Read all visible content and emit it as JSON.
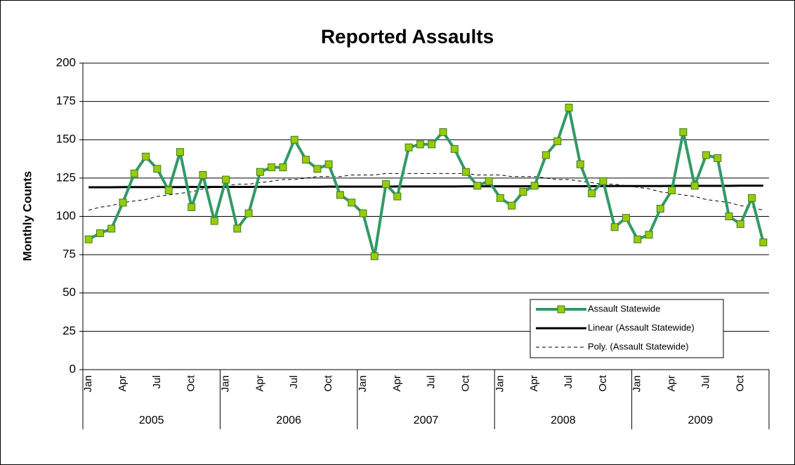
{
  "chart_data": {
    "type": "line",
    "title": "Reported Assaults",
    "y_label": "Monthly Counts",
    "categories": [
      "Jan",
      null,
      null,
      "Apr",
      null,
      null,
      "Jul",
      null,
      null,
      "Oct",
      null,
      null,
      "Jan",
      null,
      null,
      "Apr",
      null,
      null,
      "Jul",
      null,
      null,
      "Oct",
      null,
      null,
      "Jan",
      null,
      null,
      "Apr",
      null,
      null,
      "Jul",
      null,
      null,
      "Oct",
      null,
      null,
      "Jan",
      null,
      null,
      "Apr",
      null,
      null,
      "Jul",
      null,
      null,
      "Oct",
      null,
      null,
      "Jan",
      null,
      null,
      "Apr",
      null,
      null,
      "Jul",
      null,
      null,
      "Oct",
      null,
      null
    ],
    "groups": [
      "2005",
      "2006",
      "2007",
      "2008",
      "2009"
    ],
    "series": [
      {
        "name": "Assault Statewide",
        "color": "#339966",
        "marker_color": "#99cc00",
        "marker": "square",
        "values": [
          85,
          89,
          92,
          109,
          128,
          139,
          131,
          117,
          142,
          106,
          127,
          97,
          124,
          92,
          102,
          129,
          132,
          132,
          150,
          137,
          131,
          134,
          114,
          109,
          102,
          74,
          121,
          113,
          145,
          147,
          147,
          155,
          144,
          129,
          120,
          123,
          112,
          107,
          116,
          120,
          140,
          149,
          171,
          134,
          115,
          123,
          93,
          99,
          85,
          88,
          105,
          117,
          155,
          120,
          140,
          138,
          100,
          95,
          112,
          83
        ]
      },
      {
        "name": "Linear (Assault Statewide)",
        "color": "#000000",
        "dashed": false,
        "values": [
          119.0,
          119.0,
          119.0,
          119.1,
          119.1,
          119.1,
          119.1,
          119.1,
          119.1,
          119.2,
          119.2,
          119.2,
          119.2,
          119.2,
          119.2,
          119.3,
          119.3,
          119.3,
          119.3,
          119.3,
          119.3,
          119.4,
          119.4,
          119.4,
          119.4,
          119.4,
          119.4,
          119.5,
          119.5,
          119.5,
          119.5,
          119.5,
          119.5,
          119.6,
          119.6,
          119.6,
          119.6,
          119.6,
          119.6,
          119.7,
          119.7,
          119.7,
          119.7,
          119.7,
          119.7,
          119.8,
          119.8,
          119.8,
          119.8,
          119.8,
          119.8,
          119.9,
          119.9,
          119.9,
          119.9,
          119.9,
          119.9,
          120.0,
          120.0,
          120.0
        ]
      },
      {
        "name": "Poly. (Assault Statewide)",
        "color": "#000000",
        "dashed": true,
        "values": [
          104,
          106,
          107,
          109,
          110,
          111,
          113,
          114,
          115,
          116,
          118,
          119,
          120,
          121,
          121,
          122,
          123,
          124,
          124,
          125,
          126,
          126,
          126,
          127,
          127,
          127,
          128,
          128,
          128,
          128,
          128,
          128,
          128,
          128,
          127,
          127,
          127,
          126,
          126,
          126,
          125,
          124,
          124,
          123,
          122,
          121,
          121,
          120,
          119,
          118,
          116,
          115,
          114,
          113,
          111,
          110,
          109,
          107,
          106,
          104
        ]
      }
    ],
    "ylim": [
      0,
      200
    ],
    "yticks": [
      0,
      25,
      50,
      75,
      100,
      125,
      150,
      175,
      200
    ],
    "grid": true,
    "legend": "lower right"
  }
}
